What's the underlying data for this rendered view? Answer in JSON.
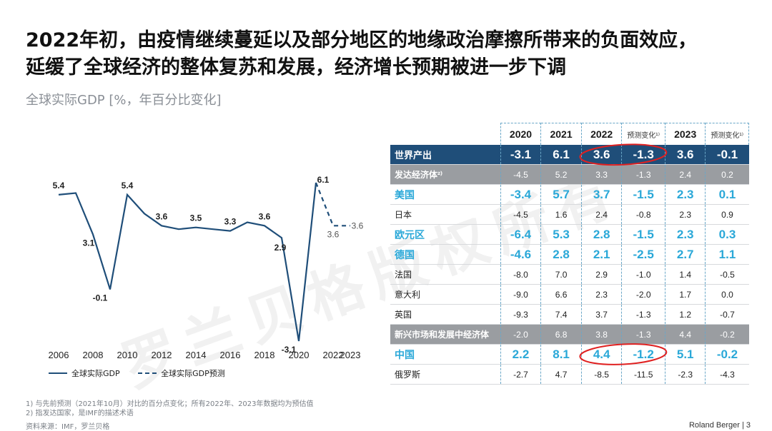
{
  "title_line1": "2022年初，由疫情继续蔓延以及部分地区的地缘政治摩擦所带来的负面效应，",
  "title_line2": "延缓了全球经济的整体复苏和发展，经济增长预期被进一步下调",
  "subtitle": "全球实际GDP [%，年百分比变化]",
  "watermark": "罗兰贝格版权所有",
  "legend": {
    "actual": "全球实际GDP",
    "forecast": "全球实际GDP预测"
  },
  "chart_data": {
    "type": "line",
    "x_ticks": [
      "2006",
      "2008",
      "2010",
      "2012",
      "2014",
      "2016",
      "2018",
      "2020",
      "2022",
      "2023"
    ],
    "series": [
      {
        "name": "全球实际GDP",
        "x": [
          2006,
          2007,
          2008,
          2009,
          2010,
          2011,
          2012,
          2013,
          2014,
          2015,
          2016,
          2017,
          2018,
          2019,
          2020,
          2021
        ],
        "y": [
          5.4,
          5.5,
          3.1,
          -0.1,
          5.4,
          4.3,
          3.6,
          3.4,
          3.5,
          3.4,
          3.3,
          3.8,
          3.6,
          2.9,
          -3.1,
          6.1
        ]
      },
      {
        "name": "全球实际GDP预测",
        "x": [
          2021,
          2022,
          2023
        ],
        "y": [
          6.1,
          3.6,
          3.6
        ]
      }
    ],
    "labels": [
      {
        "x": 2006,
        "y": 5.4,
        "text": "5.4"
      },
      {
        "x": 2008,
        "y": 3.1,
        "text": "3.1"
      },
      {
        "x": 2009,
        "y": -0.1,
        "text": "-0.1"
      },
      {
        "x": 2010,
        "y": 5.4,
        "text": "5.4"
      },
      {
        "x": 2012,
        "y": 3.6,
        "text": "3.6"
      },
      {
        "x": 2014,
        "y": 3.5,
        "text": "3.5"
      },
      {
        "x": 2016,
        "y": 3.3,
        "text": "3.3"
      },
      {
        "x": 2018,
        "y": 3.6,
        "text": "3.6"
      },
      {
        "x": 2019,
        "y": 2.9,
        "text": "2.9"
      },
      {
        "x": 2020,
        "y": -3.1,
        "text": "-3.1"
      },
      {
        "x": 2021,
        "y": 6.1,
        "text": "6.1"
      },
      {
        "x": 2022,
        "y": 3.6,
        "text": "3.6"
      },
      {
        "x": 2023,
        "y": 3.6,
        "text": "3.6"
      }
    ],
    "line_color": "#1f4e79"
  },
  "table": {
    "headers": [
      "2020",
      "2021",
      "2022",
      "预测变化¹⁾",
      "2023",
      "预测变化¹⁾"
    ],
    "rows": [
      {
        "name": "世界产出",
        "style": "world",
        "values": [
          "-3.1",
          "6.1",
          "3.6",
          "-1.3",
          "3.6",
          "-0.1"
        ]
      },
      {
        "name": "发达经济体²⁾",
        "style": "group",
        "values": [
          "-4.5",
          "5.2",
          "3.3",
          "-1.3",
          "2.4",
          "0.2"
        ]
      },
      {
        "name": "美国",
        "style": "hl",
        "values": [
          "-3.4",
          "5.7",
          "3.7",
          "-1.5",
          "2.3",
          "0.1"
        ]
      },
      {
        "name": "日本",
        "style": "norm",
        "values": [
          "-4.5",
          "1.6",
          "2.4",
          "-0.8",
          "2.3",
          "0.9"
        ]
      },
      {
        "name": "欧元区",
        "style": "hl",
        "values": [
          "-6.4",
          "5.3",
          "2.8",
          "-1.5",
          "2.3",
          "0.3"
        ]
      },
      {
        "name": "德国",
        "style": "hl",
        "values": [
          "-4.6",
          "2.8",
          "2.1",
          "-2.5",
          "2.7",
          "1.1"
        ]
      },
      {
        "name": "法国",
        "style": "norm",
        "values": [
          "-8.0",
          "7.0",
          "2.9",
          "-1.0",
          "1.4",
          "-0.5"
        ]
      },
      {
        "name": "意大利",
        "style": "norm",
        "values": [
          "-9.0",
          "6.6",
          "2.3",
          "-2.0",
          "1.7",
          "0.0"
        ]
      },
      {
        "name": "英国",
        "style": "norm",
        "values": [
          "-9.3",
          "7.4",
          "3.7",
          "-1.3",
          "1.2",
          "-0.7"
        ]
      },
      {
        "name": "新兴市场和发展中经济体",
        "style": "group",
        "values": [
          "-2.0",
          "6.8",
          "3.8",
          "-1.3",
          "4.4",
          "-0.2"
        ]
      },
      {
        "name": "中国",
        "style": "hl",
        "values": [
          "2.2",
          "8.1",
          "4.4",
          "-1.2",
          "5.1",
          "-0.2"
        ]
      },
      {
        "name": "俄罗斯",
        "style": "norm",
        "values": [
          "-2.7",
          "4.7",
          "-8.5",
          "-11.5",
          "-2.3",
          "-4.3"
        ]
      }
    ]
  },
  "colors": {
    "navy": "#1f4e79",
    "cyan": "#2aa8d8",
    "grey": "#9a9da1",
    "red": "#e02020"
  },
  "footnotes": {
    "note1": "1) 与先前预测（2021年10月）对比的百分点变化；所有2022年、2023年数据均为预估值",
    "note2": "2) 指发达国家，是IMF的描述术语",
    "source": "资料来源：IMF，罗兰贝格"
  },
  "brand": "Roland Berger",
  "page": "3"
}
